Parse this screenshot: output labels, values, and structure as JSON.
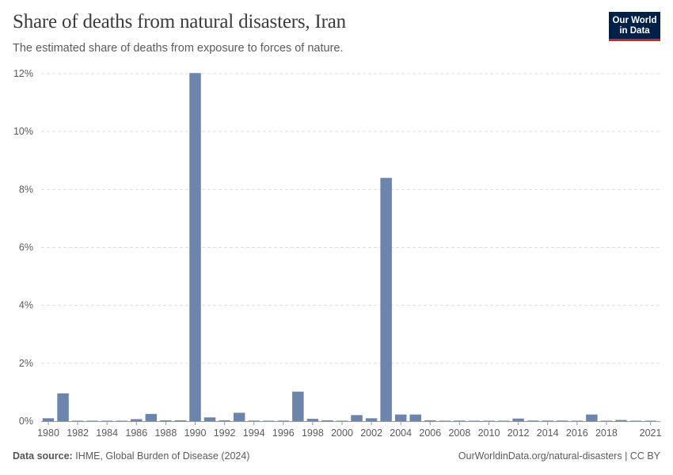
{
  "header": {
    "title": "Share of deaths from natural disasters, Iran",
    "subtitle": "The estimated share of deaths from exposure to forces of nature."
  },
  "logo": {
    "line1": "Our World",
    "line2": "in Data"
  },
  "footer": {
    "source_label": "Data source:",
    "source_text": "IHME, Global Burden of Disease (2024)",
    "url_text": "OurWorldinData.org/natural-disasters | CC BY"
  },
  "colors": {
    "bar": "#6d84ab",
    "grid": "#dddddd",
    "text": "#5b5b5b",
    "axis": "#999999"
  },
  "chart_data": {
    "type": "bar",
    "title": "Share of deaths from natural disasters, Iran",
    "xlabel": "",
    "ylabel": "",
    "x_tick_labels": [
      "1980",
      "1982",
      "1984",
      "1986",
      "1988",
      "1990",
      "1992",
      "1994",
      "1996",
      "1998",
      "2000",
      "2002",
      "2004",
      "2006",
      "2008",
      "2010",
      "2012",
      "2014",
      "2016",
      "2018",
      "2021"
    ],
    "y_ticks": [
      0,
      2,
      4,
      6,
      8,
      10,
      12
    ],
    "y_tick_labels": [
      "0%",
      "2%",
      "4%",
      "6%",
      "8%",
      "10%",
      "12%"
    ],
    "ylim": [
      0,
      12
    ],
    "x_range": [
      1980,
      2021
    ],
    "grid": true,
    "unit": "%",
    "years": [
      1980,
      1981,
      1982,
      1983,
      1984,
      1985,
      1986,
      1987,
      1988,
      1989,
      1990,
      1991,
      1992,
      1993,
      1994,
      1995,
      1996,
      1997,
      1998,
      1999,
      2000,
      2001,
      2002,
      2003,
      2004,
      2005,
      2006,
      2007,
      2008,
      2009,
      2010,
      2011,
      2012,
      2013,
      2014,
      2015,
      2016,
      2017,
      2018,
      2019,
      2020,
      2021
    ],
    "values": [
      0.1,
      0.96,
      0.01,
      0.01,
      0.005,
      0.005,
      0.07,
      0.25,
      0.03,
      0.03,
      12.02,
      0.13,
      0.03,
      0.29,
      0.02,
      0.01,
      0.02,
      1.02,
      0.08,
      0.03,
      0.01,
      0.21,
      0.1,
      8.4,
      0.23,
      0.23,
      0.03,
      0.01,
      0.02,
      0.01,
      0.01,
      0.005,
      0.09,
      0.02,
      0.02,
      0.02,
      0.01,
      0.23,
      0.01,
      0.04,
      0.005,
      0.005
    ]
  }
}
